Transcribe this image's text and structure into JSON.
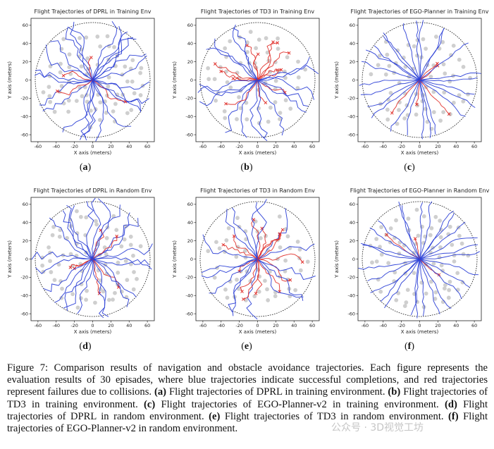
{
  "figure": {
    "colors": {
      "success": "#2b3fd6",
      "failure": "#e0312c",
      "obstacle": "#cfcfcf",
      "boundary": "#111111"
    },
    "panels": [
      {
        "label": "a",
        "title": "Flight Trajectories of DPRL in Training Env"
      },
      {
        "label": "b",
        "title": "Flight Trajectories of TD3 in Training Env"
      },
      {
        "label": "c",
        "title": "Flight Trajectories of EGO-Planner in Training Env"
      },
      {
        "label": "d",
        "title": "Flight Trajectories of DPRL in Random Env"
      },
      {
        "label": "e",
        "title": "Flight Trajectories of TD3 in Random Env"
      },
      {
        "label": "f",
        "title": "Flight Trajectories of EGO-Planner in Random Env"
      }
    ],
    "axes": {
      "xlabel": "X axis (meters)",
      "ylabel": "Y axis (meters)",
      "ticks_ab": [
        "-60",
        "-40",
        "-20",
        "0",
        "20",
        "40",
        "60"
      ],
      "ticks_c": [
        "-60",
        "-40",
        "-20",
        "0",
        "20",
        "40",
        "60"
      ]
    },
    "caption": {
      "lead": "Figure 7: Comparison results of navigation and obstacle avoidance trajectories. Each figure represents the evaluation results of 30 episades, where blue trajectories indicate successful completions, and red trajectories represent failures due to collisions.",
      "items": [
        {
          "tag": "(a)",
          "text": "Flight trajectories of DPRL in training environment."
        },
        {
          "tag": "(b)",
          "text": "Flight trajectories of TD3 in training environment."
        },
        {
          "tag": "(c)",
          "text": "Flight trajectories of EGO-Planner-v2 in training environment."
        },
        {
          "tag": "(d)",
          "text": "Flight trajectories of DPRL in random environment."
        },
        {
          "tag": "(e)",
          "text": "Flight trajectories of TD3 in random environment."
        },
        {
          "tag": "(f)",
          "text": "Flight trajectories of EGO-Planner-v2 in random environment."
        }
      ]
    },
    "watermark": "公众号 · 3D视觉工坊"
  }
}
